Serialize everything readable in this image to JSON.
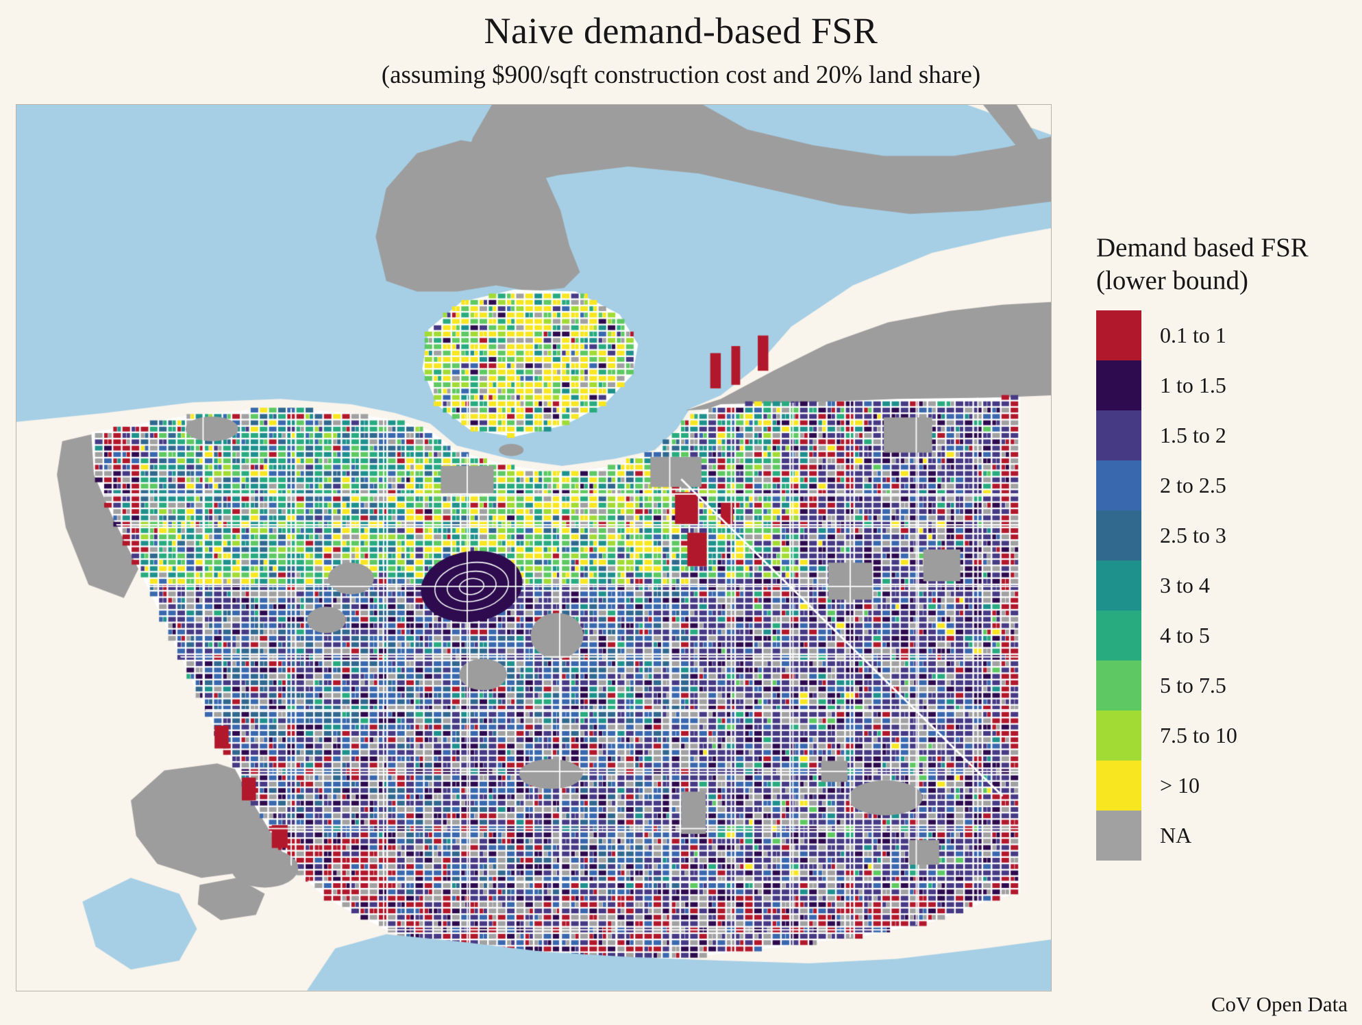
{
  "title": "Naive demand-based FSR",
  "subtitle": "(assuming $900/sqft construction cost and 20% land share)",
  "caption": "CoV Open Data",
  "legend": {
    "title_line1": "Demand based FSR",
    "title_line2": "(lower bound)",
    "items": [
      {
        "label": "0.1 to 1",
        "color": "#b2182b"
      },
      {
        "label": "1 to 1.5",
        "color": "#2d0b4e"
      },
      {
        "label": "1.5 to 2",
        "color": "#473a85"
      },
      {
        "label": "2 to 2.5",
        "color": "#3a68ae"
      },
      {
        "label": "2.5 to 3",
        "color": "#31688e"
      },
      {
        "label": "3 to 4",
        "color": "#1f918d"
      },
      {
        "label": "4 to 5",
        "color": "#28ab7f"
      },
      {
        "label": "5 to 7.5",
        "color": "#5ec962"
      },
      {
        "label": "7.5 to 10",
        "color": "#a2db34"
      },
      {
        "label": "> 10",
        "color": "#f8e621"
      },
      {
        "label": "NA",
        "color": "#a1a1a1"
      }
    ]
  },
  "map": {
    "water_color": "#a6cfe5",
    "land_na_color": "#9d9d9d",
    "background_color": "#f9f4ec",
    "road_color": "#ffffff"
  }
}
